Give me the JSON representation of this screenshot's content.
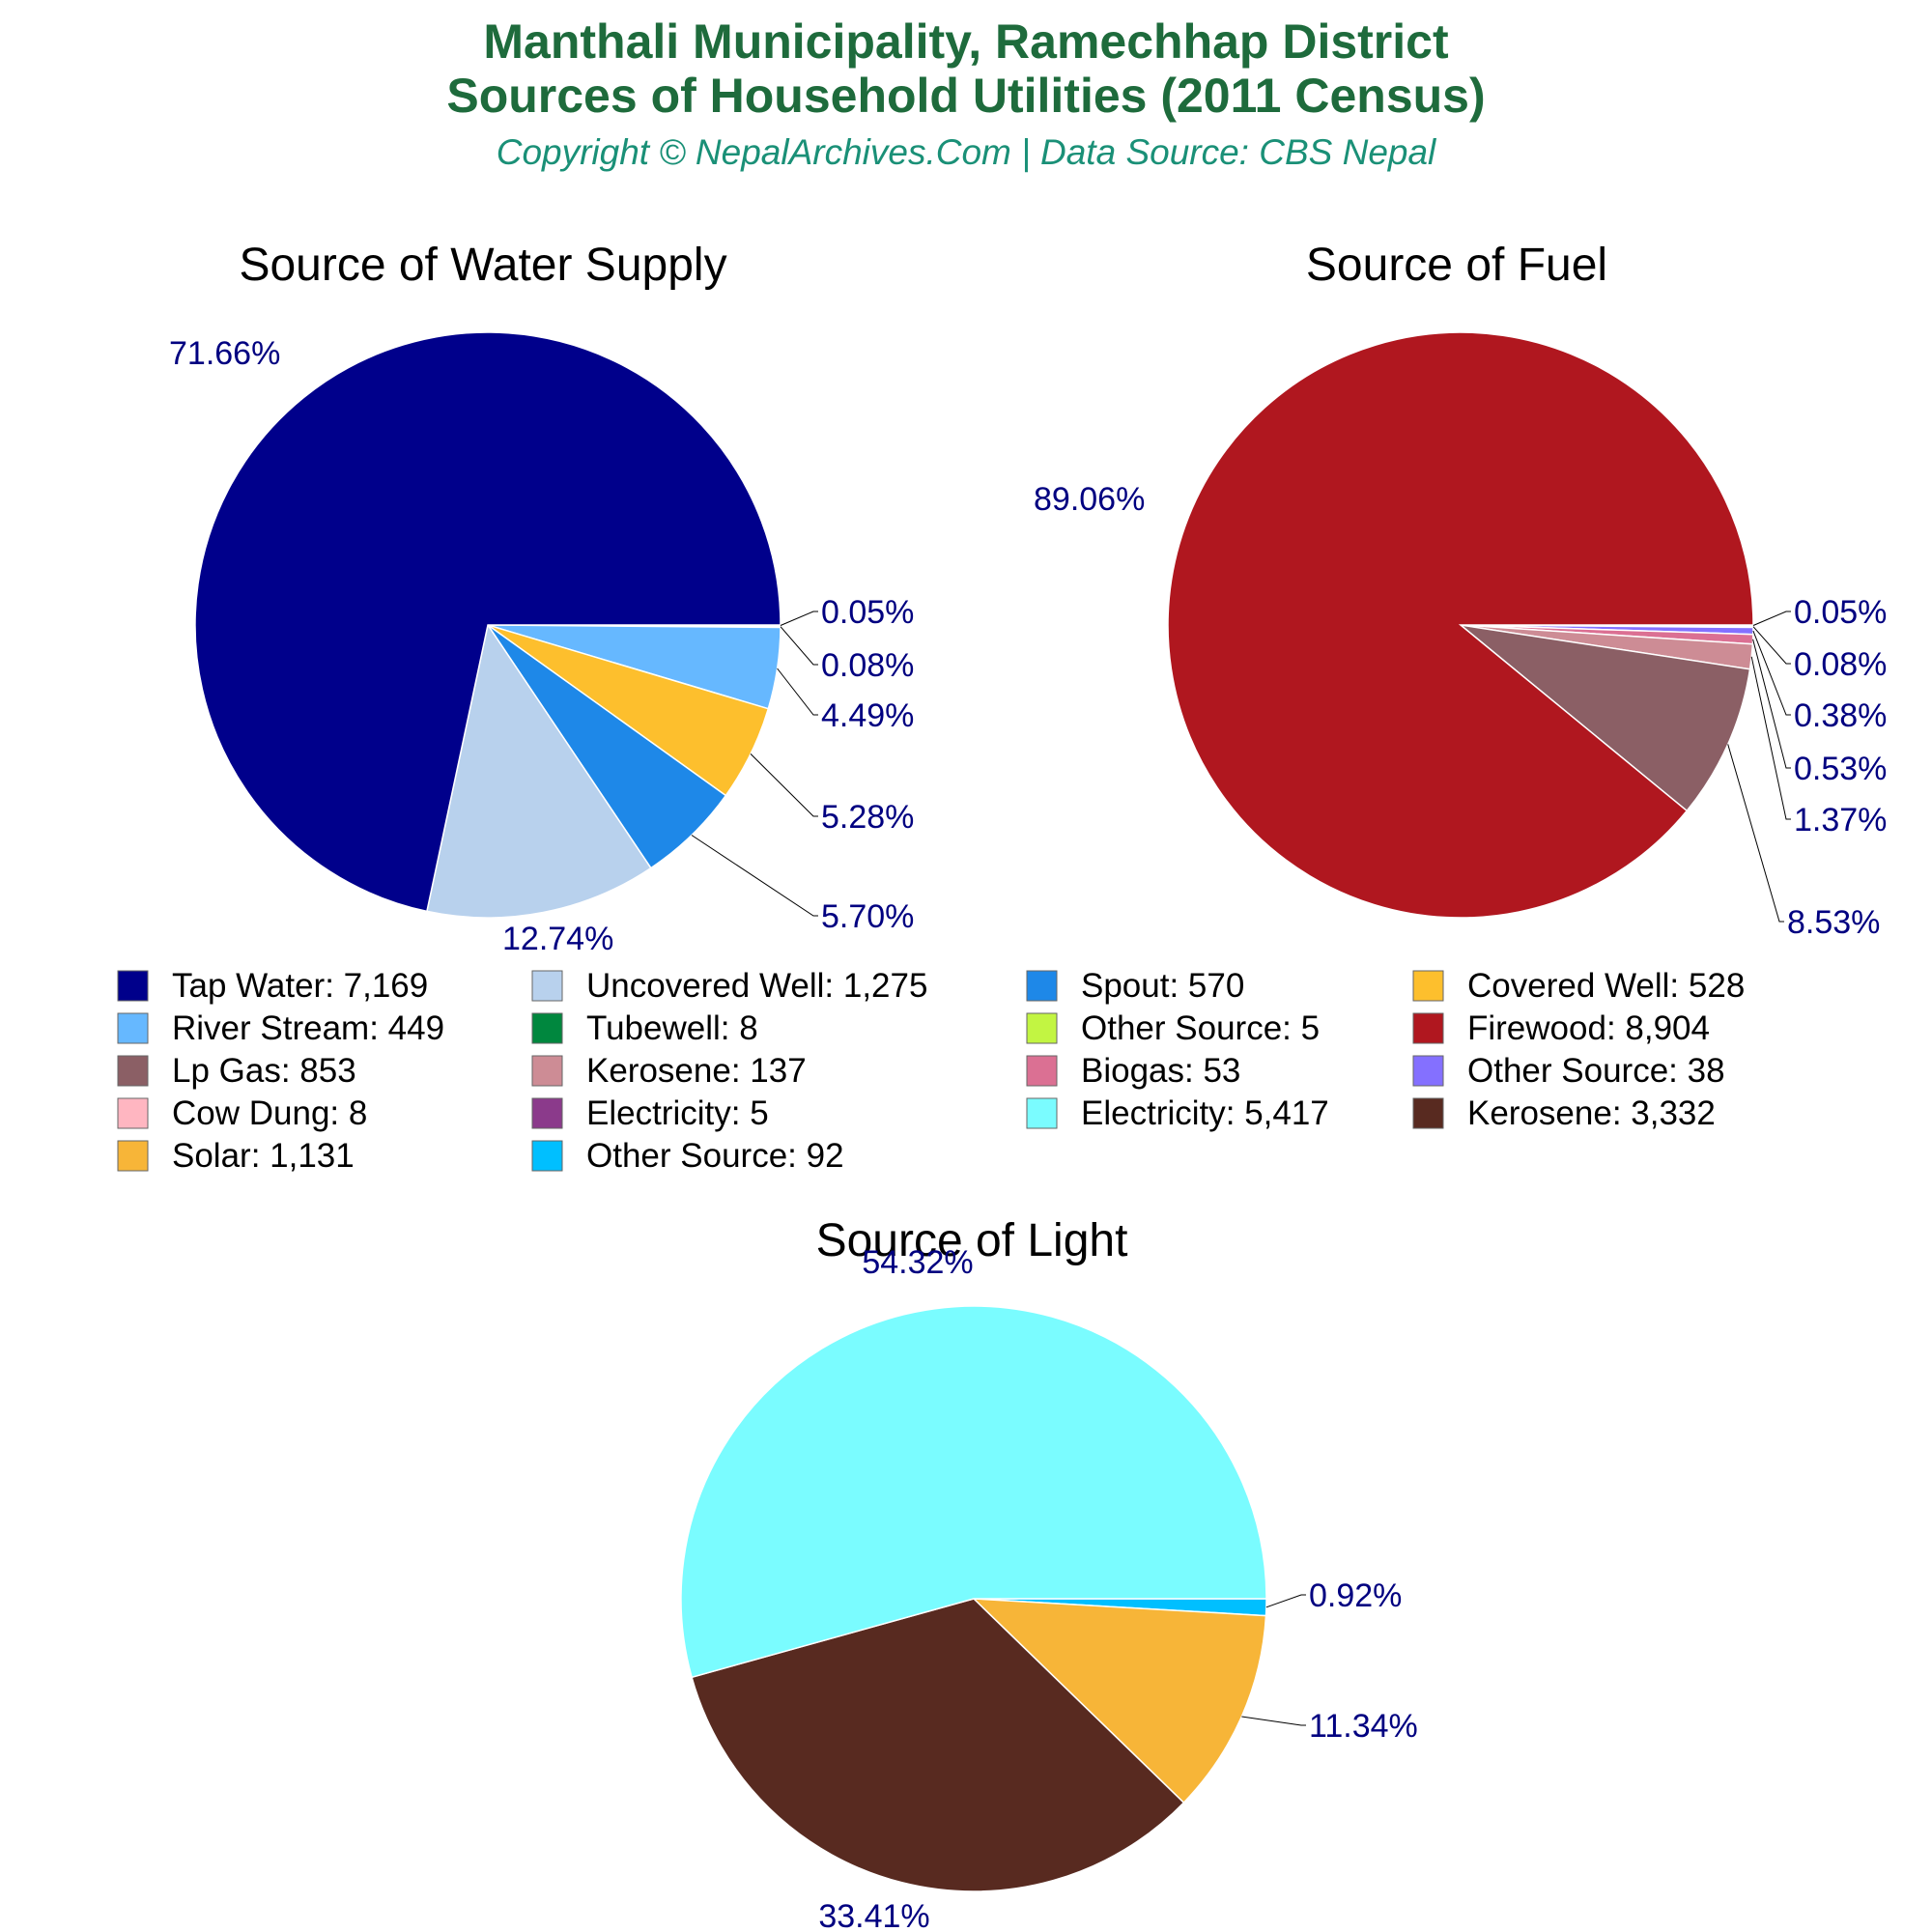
{
  "title_line1": "Manthali Municipality, Ramechhap District",
  "title_line2": "Sources of Household Utilities (2011 Census)",
  "subtitle": "Copyright © NepalArchives.Com | Data Source: CBS Nepal",
  "chart_data": [
    {
      "type": "pie",
      "title": "Source of Water Supply",
      "slices": [
        {
          "label": "Tap Water",
          "value": 7169,
          "value_label": "7,169",
          "pct": "71.66%",
          "color": "#00008b"
        },
        {
          "label": "Uncovered Well",
          "value": 1275,
          "value_label": "1,275",
          "pct": "12.74%",
          "color": "#b8d1ed"
        },
        {
          "label": "Spout",
          "value": 570,
          "value_label": "570",
          "pct": "5.70%",
          "color": "#1e88e8"
        },
        {
          "label": "Covered Well",
          "value": 528,
          "value_label": "528",
          "pct": "5.28%",
          "color": "#fdbf2d"
        },
        {
          "label": "River Stream",
          "value": 449,
          "value_label": "449",
          "pct": "4.49%",
          "color": "#66b8ff"
        },
        {
          "label": "Tubewell",
          "value": 8,
          "value_label": "8",
          "pct": "0.08%",
          "color": "#00873e"
        },
        {
          "label": "Other Source",
          "value": 5,
          "value_label": "5",
          "pct": "0.05%",
          "color": "#c2f542"
        }
      ]
    },
    {
      "type": "pie",
      "title": "Source of Fuel",
      "slices": [
        {
          "label": "Firewood",
          "value": 8904,
          "value_label": "8,904",
          "pct": "89.06%",
          "color": "#b0171f"
        },
        {
          "label": "Lp Gas",
          "value": 853,
          "value_label": "853",
          "pct": "8.53%",
          "color": "#8b5f65"
        },
        {
          "label": "Kerosene",
          "value": 137,
          "value_label": "137",
          "pct": "1.37%",
          "color": "#cd8c95"
        },
        {
          "label": "Biogas",
          "value": 53,
          "value_label": "53",
          "pct": "0.53%",
          "color": "#db7093"
        },
        {
          "label": "Other Source",
          "value": 38,
          "value_label": "38",
          "pct": "0.38%",
          "color": "#8470ff"
        },
        {
          "label": "Cow Dung",
          "value": 8,
          "value_label": "8",
          "pct": "0.08%",
          "color": "#ffb6c1"
        },
        {
          "label": "Electricity",
          "value": 5,
          "value_label": "5",
          "pct": "0.05%",
          "color": "#8b3a8b"
        }
      ]
    },
    {
      "type": "pie",
      "title": "Source of Light",
      "slices": [
        {
          "label": "Electricity",
          "value": 5417,
          "value_label": "5,417",
          "pct": "54.32%",
          "color": "#7afcff"
        },
        {
          "label": "Kerosene",
          "value": 3332,
          "value_label": "3,332",
          "pct": "33.41%",
          "color": "#582a20"
        },
        {
          "label": "Solar",
          "value": 1131,
          "value_label": "1,131",
          "pct": "11.34%",
          "color": "#f7b538"
        },
        {
          "label": "Other Source",
          "value": 92,
          "value_label": "92",
          "pct": "0.92%",
          "color": "#00bfff"
        }
      ]
    }
  ]
}
